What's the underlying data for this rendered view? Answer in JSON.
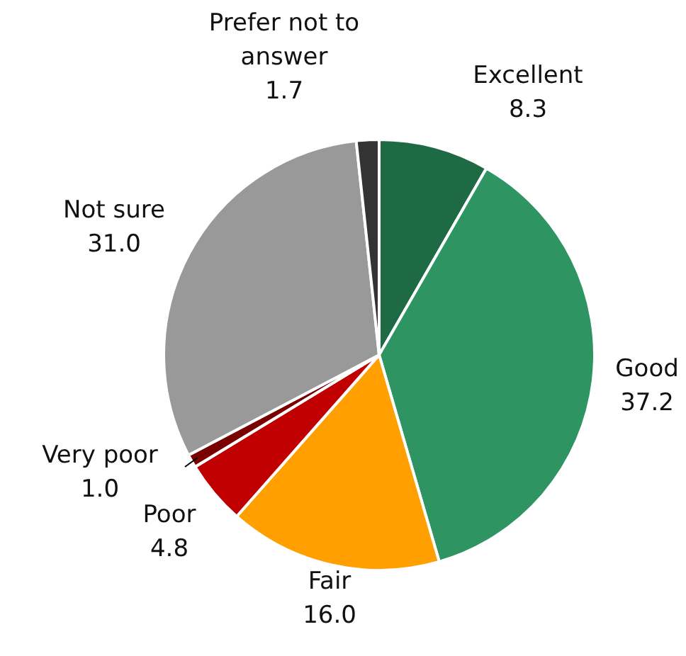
{
  "chart_data": {
    "type": "pie",
    "categories": [
      "Excellent",
      "Good",
      "Fair",
      "Poor",
      "Very poor",
      "Not sure",
      "Prefer not to answer"
    ],
    "values": [
      8.3,
      37.2,
      16.0,
      4.8,
      1.0,
      31.0,
      1.7
    ],
    "value_labels": [
      "8.3",
      "37.2",
      "16.0",
      "4.8",
      "1.0",
      "31.0",
      "1.7"
    ],
    "colors": [
      "#1e6a45",
      "#2e9462",
      "#ff9f00",
      "#c00000",
      "#7a0000",
      "#999999",
      "#333333"
    ]
  }
}
